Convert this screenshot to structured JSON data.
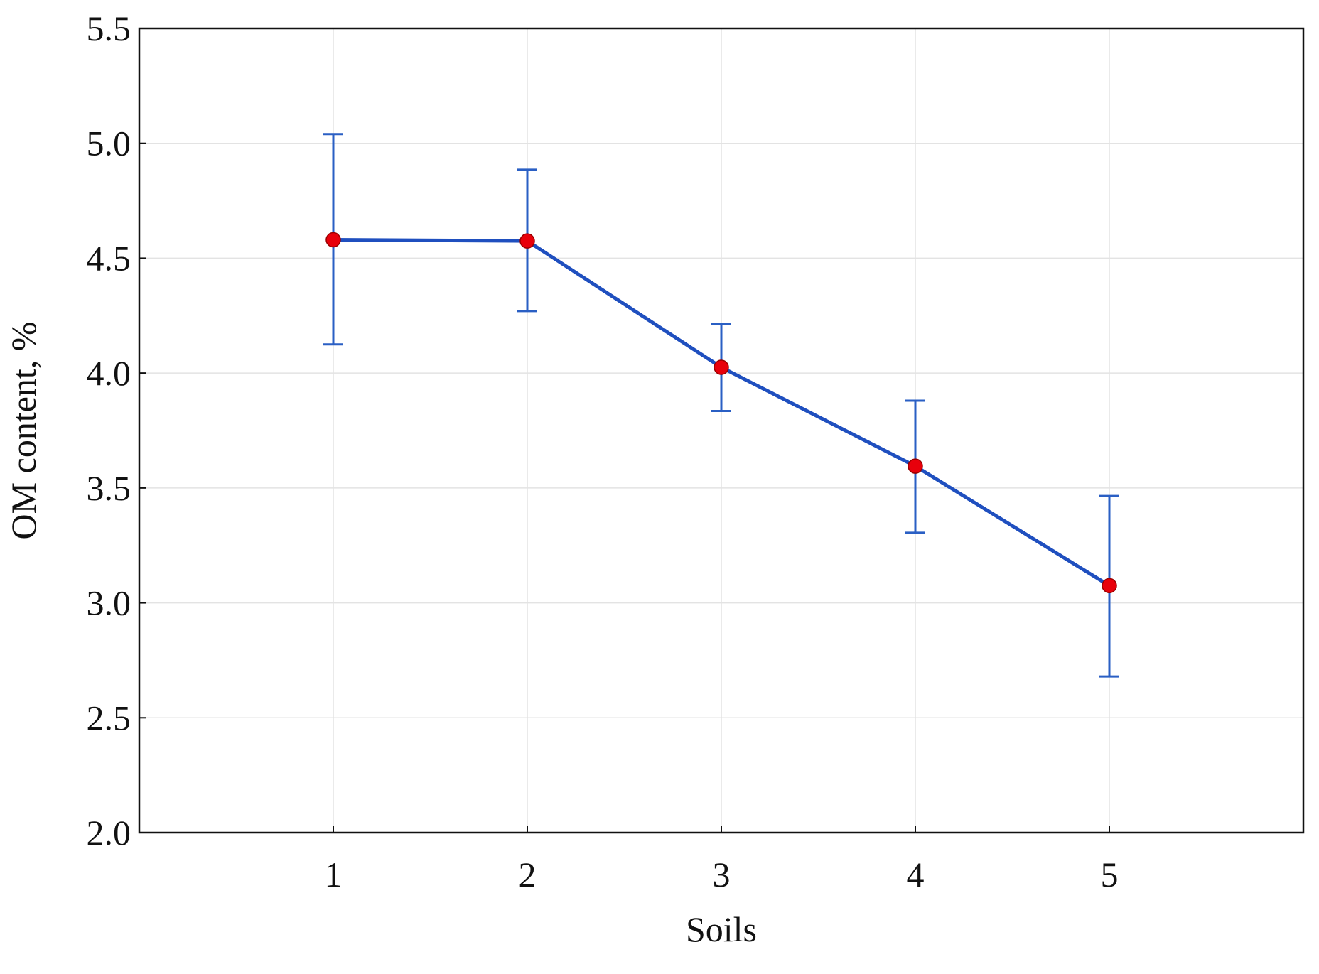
{
  "chart_data": {
    "type": "line",
    "title": "",
    "xlabel": "Soils",
    "ylabel": "OM content, %",
    "x": [
      1,
      2,
      3,
      4,
      5
    ],
    "x_ticks": [
      "1",
      "2",
      "3",
      "4",
      "5"
    ],
    "xlim": [
      0,
      6
    ],
    "ylim": [
      2.0,
      5.5
    ],
    "y_ticks": [
      "2.0",
      "2.5",
      "3.0",
      "3.5",
      "4.0",
      "4.5",
      "5.0",
      "5.5"
    ],
    "grid": true,
    "series": [
      {
        "values": [
          4.58,
          4.575,
          4.025,
          3.595,
          3.075
        ],
        "error_low": [
          4.125,
          4.27,
          3.835,
          3.305,
          2.68
        ],
        "error_high": [
          5.04,
          4.885,
          4.215,
          3.88,
          3.465
        ],
        "line_color": "#1f4fbf",
        "marker_color": "#e8000b",
        "error_bar_color": "#2a5fc4"
      }
    ]
  }
}
